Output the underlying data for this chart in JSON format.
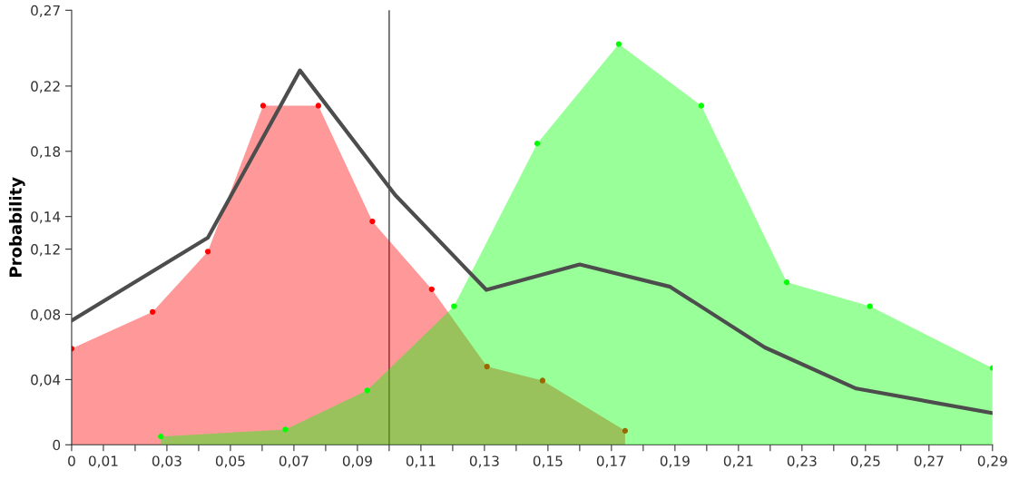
{
  "chart_data": {
    "type": "area",
    "ylabel": "Probability",
    "xlim": [
      0,
      0.29
    ],
    "ylim": [
      0,
      0.2665
    ],
    "xticks": [
      {
        "value": 0,
        "label": "0"
      },
      {
        "value": 0.01,
        "label": "0,01"
      },
      {
        "value": 0.02,
        "label": null
      },
      {
        "value": 0.03,
        "label": "0,03"
      },
      {
        "value": 0.04,
        "label": null
      },
      {
        "value": 0.05,
        "label": "0,05"
      },
      {
        "value": 0.06,
        "label": null
      },
      {
        "value": 0.07,
        "label": "0,07"
      },
      {
        "value": 0.08,
        "label": null
      },
      {
        "value": 0.09,
        "label": "0,09"
      },
      {
        "value": 0.1,
        "label": null
      },
      {
        "value": 0.11,
        "label": "0,11"
      },
      {
        "value": 0.12,
        "label": null
      },
      {
        "value": 0.13,
        "label": "0,13"
      },
      {
        "value": 0.14,
        "label": null
      },
      {
        "value": 0.15,
        "label": "0,15"
      },
      {
        "value": 0.16,
        "label": null
      },
      {
        "value": 0.17,
        "label": "0,17"
      },
      {
        "value": 0.18,
        "label": null
      },
      {
        "value": 0.19,
        "label": "0,19"
      },
      {
        "value": 0.2,
        "label": null
      },
      {
        "value": 0.21,
        "label": "0,21"
      },
      {
        "value": 0.22,
        "label": null
      },
      {
        "value": 0.23,
        "label": "0,23"
      },
      {
        "value": 0.24,
        "label": null
      },
      {
        "value": 0.25,
        "label": "0,25"
      },
      {
        "value": 0.26,
        "label": null
      },
      {
        "value": 0.27,
        "label": "0,27"
      },
      {
        "value": 0.28,
        "label": null
      },
      {
        "value": 0.29,
        "label": "0,29"
      }
    ],
    "yticks": [
      {
        "value": 0,
        "label": "0"
      },
      {
        "value": 0.04,
        "label": "0,04"
      },
      {
        "value": 0.08,
        "label": "0,08"
      },
      {
        "value": 0.12,
        "label": "0,12"
      },
      {
        "value": 0.14,
        "label": "0,14"
      },
      {
        "value": 0.18,
        "label": "0,18"
      },
      {
        "value": 0.22,
        "label": "0,22"
      },
      {
        "value": 0.2665,
        "label": "0,27"
      }
    ],
    "grid": false,
    "ref_lines": [
      {
        "axis": "x",
        "value": 0.1,
        "color": "#404040",
        "line_style": "solid"
      }
    ],
    "series": [
      {
        "color": "#ff0000",
        "marker": "circle",
        "x": [
          0,
          0.0255,
          0.0429,
          0.0603,
          0.0777,
          0.0947,
          0.1134,
          0.1308,
          0.1483,
          0.1743
        ],
        "values": [
          0.059,
          0.0815,
          0.1185,
          0.208,
          0.208,
          0.137,
          0.0954,
          0.048,
          0.0394,
          0.0086
        ]
      },
      {
        "color": "#00ff00",
        "marker": "circle",
        "x": [
          0.0281,
          0.0673,
          0.0931,
          0.1204,
          0.1466,
          0.1723,
          0.1983,
          0.2252,
          0.2514,
          0.29
        ],
        "values": [
          0.0051,
          0.0094,
          0.0334,
          0.085,
          0.1848,
          0.2458,
          0.208,
          0.0997,
          0.085,
          0.0471
        ]
      },
      {
        "type": "line",
        "color": "#4d4d4d",
        "marker": "none",
        "line_style": "solid",
        "x": [
          0,
          0.0429,
          0.0719,
          0.1019,
          0.1306,
          0.16,
          0.1885,
          0.2183,
          0.2471,
          0.29
        ],
        "values": [
          0.0762,
          0.127,
          0.2296,
          0.1532,
          0.095,
          0.1106,
          0.0969,
          0.0597,
          0.0345,
          0.0195
        ]
      }
    ]
  }
}
